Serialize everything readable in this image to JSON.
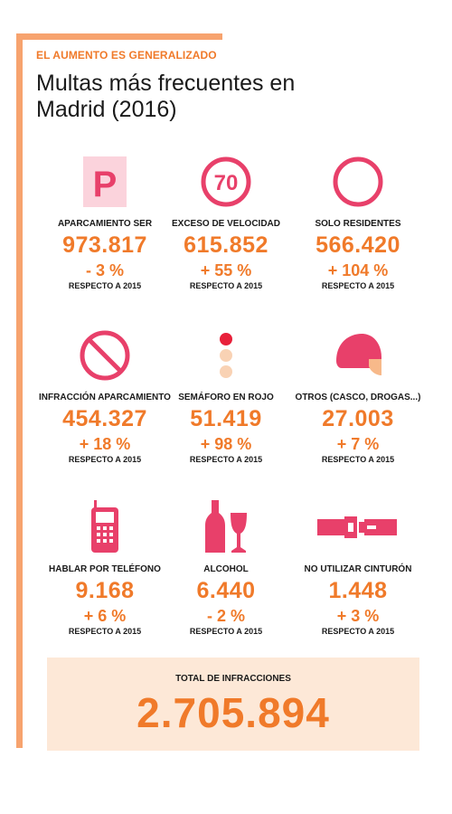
{
  "header": {
    "kicker": "EL AUMENTO ES GENERALIZADO",
    "title": "Multas más frecuentes en Madrid (2016)"
  },
  "colors": {
    "accent": "#f07a2a",
    "accent_light": "#f7a36e",
    "pink": "#e8406a",
    "pink_light": "#fbd3dc",
    "peach": "#f9d2b4",
    "total_bg": "#fde8d7"
  },
  "items": [
    {
      "icon": "parking-p-icon",
      "label": "APARCAMIENTO SER",
      "value": "973.817",
      "change": "- 3 %",
      "note": "RESPECTO A 2015"
    },
    {
      "icon": "speed-limit-70-icon",
      "icon_text": "70",
      "label": "EXCESO DE VELOCIDAD",
      "value": "615.852",
      "change": "+ 55 %",
      "note": "RESPECTO A 2015"
    },
    {
      "icon": "residents-only-circle-icon",
      "label": "SOLO RESIDENTES",
      "value": "566.420",
      "change": "+ 104 %",
      "note": "RESPECTO A 2015"
    },
    {
      "icon": "no-parking-icon",
      "label": "INFRACCIÓN APARCAMIENTO",
      "value": "454.327",
      "change": "+ 18 %",
      "note": "RESPECTO A 2015"
    },
    {
      "icon": "traffic-light-icon",
      "label": "SEMÁFORO EN ROJO",
      "value": "51.419",
      "change": "+ 98 %",
      "note": "RESPECTO A 2015"
    },
    {
      "icon": "helmet-icon",
      "label": "OTROS (CASCO, DROGAS...)",
      "value": "27.003",
      "change": "+ 7 %",
      "note": "RESPECTO A 2015"
    },
    {
      "icon": "mobile-phone-icon",
      "label": "HABLAR POR TELÉFONO",
      "value": "9.168",
      "change": "+ 6 %",
      "note": "RESPECTO A 2015"
    },
    {
      "icon": "bottle-glass-icon",
      "label": "ALCOHOL",
      "value": "6.440",
      "change": "- 2 %",
      "note": "RESPECTO A 2015"
    },
    {
      "icon": "seatbelt-icon",
      "label": "NO UTILIZAR CINTURÓN",
      "value": "1.448",
      "change": "+ 3 %",
      "note": "RESPECTO A 2015"
    }
  ],
  "total": {
    "label": "TOTAL DE INFRACCIONES",
    "value": "2.705.894"
  }
}
